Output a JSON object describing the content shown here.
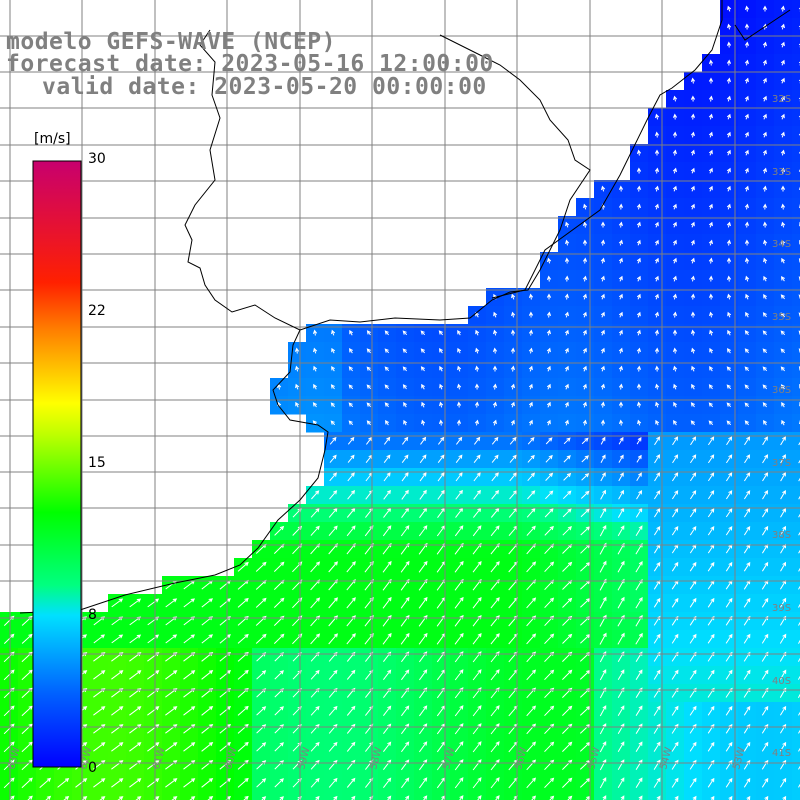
{
  "title": {
    "line1": "modelo GEFS-WAVE (NCEP)",
    "line2": "forecast date: 2023-05-16 12:00:00",
    "line3": "valid date: 2023-05-20 00:00:00"
  },
  "colorbar": {
    "unit": "[m/s]",
    "ticks": [
      {
        "label": "30",
        "value": 30
      },
      {
        "label": "22",
        "value": 22
      },
      {
        "label": "15",
        "value": 15
      },
      {
        "label": "8",
        "value": 8
      },
      {
        "label": "0",
        "value": 0
      }
    ],
    "range": [
      0,
      30
    ],
    "colors": [
      "#0000ff",
      "#0080ff",
      "#00ffff",
      "#00ff40",
      "#00ff00",
      "#80ff00",
      "#ffff00",
      "#ff8000",
      "#ff0000",
      "#c8006e"
    ]
  },
  "lat_labels": [
    "32S",
    "33S",
    "34S",
    "35S",
    "36S",
    "37S",
    "38S",
    "39S",
    "40S",
    "41S"
  ],
  "lon_labels": [
    "63W",
    "62W",
    "61W",
    "60W",
    "59W",
    "58W",
    "57W",
    "56W",
    "55W",
    "54W",
    "53W"
  ],
  "colors": {
    "land": "#ffffff",
    "grid": "#808080",
    "coast": "#000000",
    "arrow": "#ffffff",
    "title": "#808080"
  }
}
